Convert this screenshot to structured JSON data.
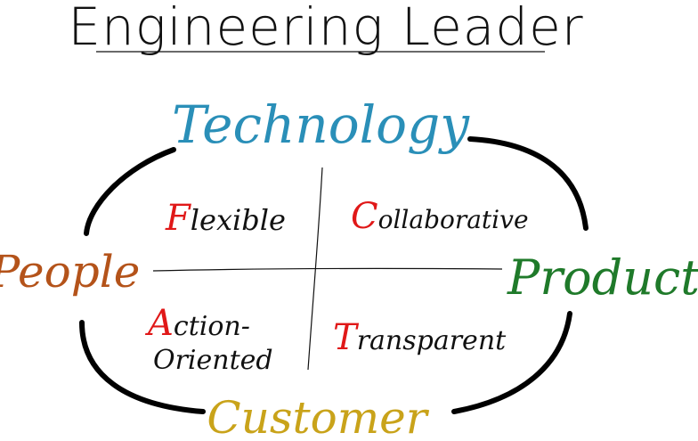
{
  "title": "Engineering Leader",
  "axes": {
    "top": "Technology",
    "left": "People",
    "right": "Product",
    "bottom": "Customer"
  },
  "quadrants": {
    "top_left": {
      "initial": "F",
      "rest": "lexible"
    },
    "top_right": {
      "initial": "C",
      "rest": "ollaborative"
    },
    "bottom_left": {
      "initial": "A",
      "rest_line1": "ction-",
      "line2": "Oriented"
    },
    "bottom_right": {
      "initial": "T",
      "rest": "ransparent"
    }
  },
  "colors": {
    "technology": "#2a8fb8",
    "people": "#b4531a",
    "product": "#1f7a2a",
    "customer": "#c9a31a",
    "initial": "#e01818",
    "ink": "#111111"
  }
}
